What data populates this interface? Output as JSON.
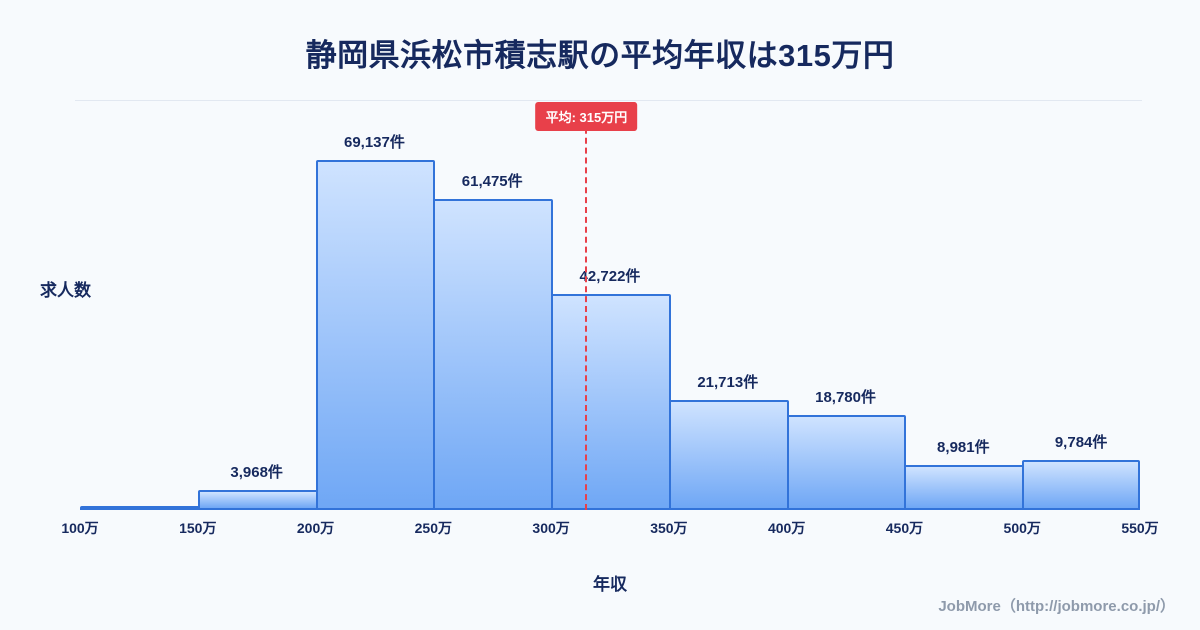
{
  "title": "静岡県浜松市積志駅の平均年収は315万円",
  "footer": "JobMore（http://jobmore.co.jp/）",
  "chart_data": {
    "type": "bar",
    "title": "静岡県浜松市積志駅の平均年収は315万円",
    "xlabel": "年収",
    "ylabel": "求人数",
    "bin_edges": [
      100,
      150,
      200,
      250,
      300,
      350,
      400,
      450,
      500,
      550
    ],
    "bin_edge_labels": [
      "100万",
      "150万",
      "200万",
      "250万",
      "300万",
      "350万",
      "400万",
      "450万",
      "500万",
      "550万"
    ],
    "values": [
      0,
      3968,
      69137,
      61475,
      42722,
      21713,
      18780,
      8981,
      9784
    ],
    "bar_labels": [
      "",
      "3,968件",
      "69,137件",
      "61,475件",
      "42,722件",
      "21,713件",
      "18,780件",
      "8,981件",
      "9,784件"
    ],
    "average": 315,
    "average_label": "平均: 315万円",
    "x_range": [
      100,
      550
    ],
    "ylim": [
      0,
      75000
    ],
    "grid": false,
    "legend": "none",
    "colors": {
      "bar_fill_top": "#cfe3ff",
      "bar_fill_bottom": "#6fa7f5",
      "bar_border": "#3273d9",
      "average_line": "#e8404a",
      "average_badge_bg": "#e8404a",
      "title": "#16295e",
      "label": "#16295e",
      "footer": "#8e9aab",
      "background": "#f7fafd"
    }
  }
}
